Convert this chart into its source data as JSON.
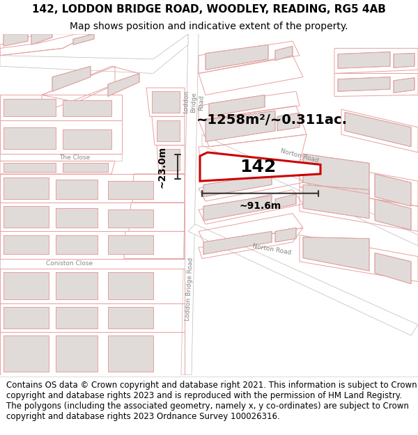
{
  "title_line1": "142, LODDON BRIDGE ROAD, WOODLEY, READING, RG5 4AB",
  "title_line2": "Map shows position and indicative extent of the property.",
  "footer_text": "Contains OS data © Crown copyright and database right 2021. This information is subject to Crown copyright and database rights 2023 and is reproduced with the permission of HM Land Registry. The polygons (including the associated geometry, namely x, y co-ordinates) are subject to Crown copyright and database rights 2023 Ordnance Survey 100026316.",
  "area_label": "~1258m²/~0.311ac.",
  "width_label": "~91.6m",
  "height_label": "~23.0m",
  "plot_number": "142",
  "map_bg": "#ffffff",
  "building_fill": "#e0dbd8",
  "parcel_stroke": "#e8a0a0",
  "building_stroke": "#b0a8a5",
  "plot_fill": "#ffffff",
  "plot_stroke": "#cc0000",
  "road_color": "#ffffff",
  "road_label_color": "#888888",
  "title_fontsize": 11,
  "subtitle_fontsize": 10,
  "footer_fontsize": 8.5,
  "annotation_color": "#222222"
}
